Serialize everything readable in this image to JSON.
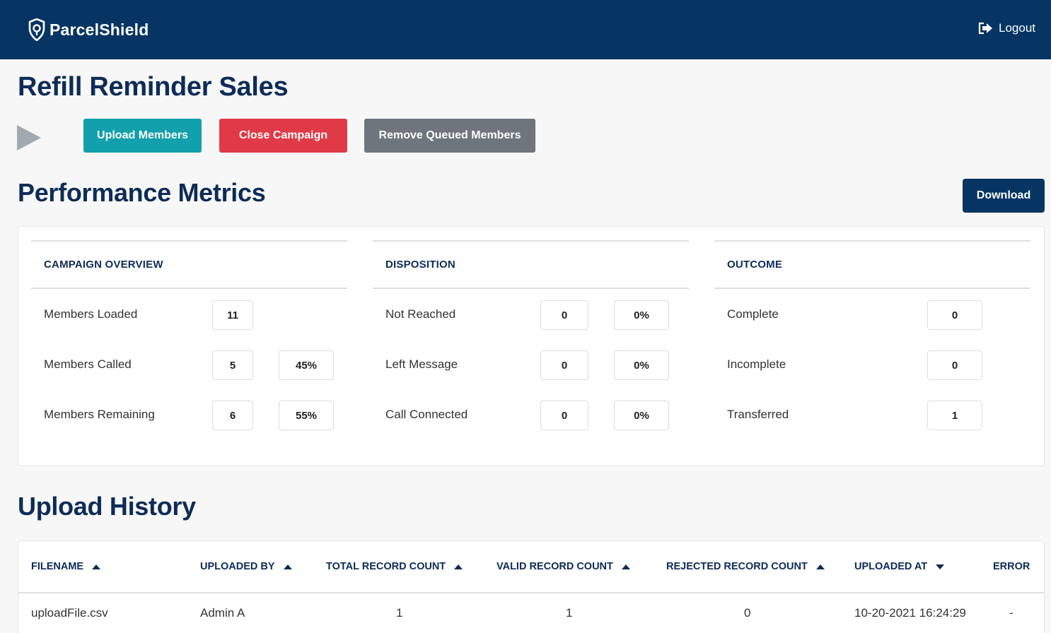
{
  "header": {
    "brand": "ParcelShield",
    "logout_label": "Logout"
  },
  "page": {
    "title": "Refill Reminder Sales"
  },
  "actions": {
    "upload_label": "Upload Members",
    "close_label": "Close Campaign",
    "remove_label": "Remove Queued Members"
  },
  "metrics": {
    "title": "Performance Metrics",
    "download_label": "Download",
    "overview": {
      "heading": "CAMPAIGN OVERVIEW",
      "rows": [
        {
          "label": "Members Loaded",
          "count": "11",
          "percent": ""
        },
        {
          "label": "Members Called",
          "count": "5",
          "percent": "45%"
        },
        {
          "label": "Members Remaining",
          "count": "6",
          "percent": "55%"
        }
      ]
    },
    "disposition": {
      "heading": "DISPOSITION",
      "rows": [
        {
          "label": "Not Reached",
          "count": "0",
          "percent": "0%"
        },
        {
          "label": "Left Message",
          "count": "0",
          "percent": "0%"
        },
        {
          "label": "Call Connected",
          "count": "0",
          "percent": "0%"
        }
      ]
    },
    "outcome": {
      "heading": "OUTCOME",
      "rows": [
        {
          "label": "Complete",
          "count": "0"
        },
        {
          "label": "Incomplete",
          "count": "0"
        },
        {
          "label": "Transferred",
          "count": "1"
        }
      ]
    }
  },
  "history": {
    "title": "Upload History",
    "columns": [
      {
        "label": "FILENAME",
        "sort": "asc"
      },
      {
        "label": "UPLOADED BY",
        "sort": "asc"
      },
      {
        "label": "TOTAL RECORD COUNT",
        "sort": "asc"
      },
      {
        "label": "VALID RECORD COUNT",
        "sort": "asc"
      },
      {
        "label": "REJECTED RECORD COUNT",
        "sort": "asc"
      },
      {
        "label": "UPLOADED AT",
        "sort": "desc"
      },
      {
        "label": "ERROR",
        "sort": ""
      }
    ],
    "rows": [
      {
        "filename": "uploadFile.csv",
        "uploaded_by": "Admin A",
        "total": "1",
        "valid": "1",
        "rejected": "0",
        "uploaded_at": "10-20-2021 16:24:29",
        "error": "-"
      }
    ]
  },
  "icons": {
    "logo": "shield-logo-icon",
    "logout": "logout-icon",
    "play": "play-icon",
    "sort_up": "sort-up-icon",
    "sort_down": "sort-down-icon"
  },
  "colors": {
    "navy": "#063563",
    "teal": "#12a0ad",
    "red": "#e03a48",
    "gray": "#6e757c"
  }
}
